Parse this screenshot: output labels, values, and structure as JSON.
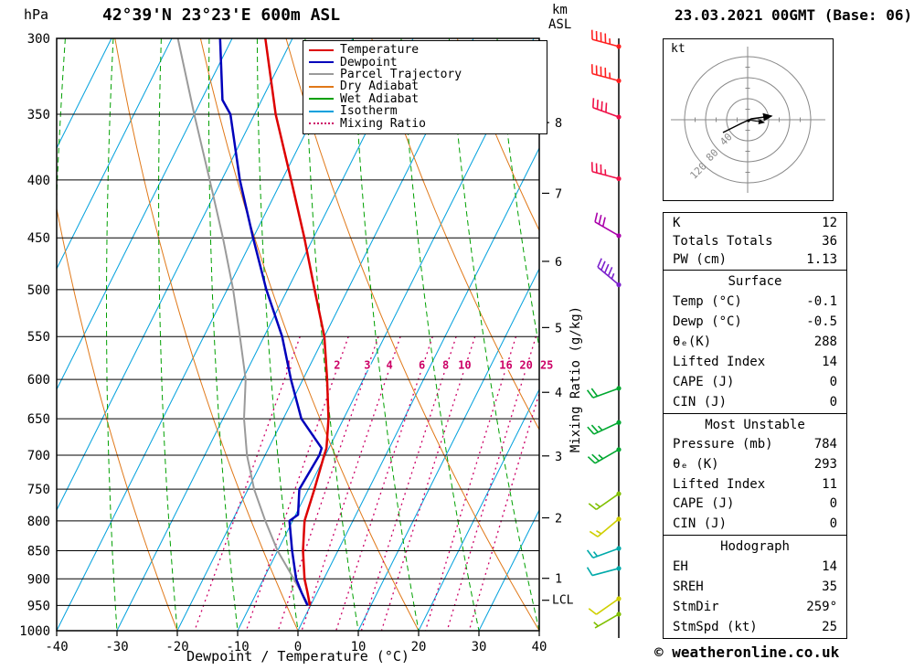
{
  "header": {
    "pressure_unit": "hPa",
    "title": "42°39'N 23°23'E 600m ASL",
    "km_label": "km",
    "asl_label": "ASL",
    "datetime": "23.03.2021 00GMT (Base: 06)"
  },
  "axes": {
    "x_label": "Dewpoint / Temperature (°C)",
    "mixing_axis_label": "Mixing Ratio (g/kg)",
    "pressure_ticks": [
      300,
      350,
      400,
      450,
      500,
      550,
      600,
      650,
      700,
      750,
      800,
      850,
      900,
      950,
      1000
    ],
    "temp_ticks": [
      -40,
      -30,
      -20,
      -10,
      0,
      10,
      20,
      30,
      40
    ],
    "km_ticks": [
      {
        "label": "8",
        "pressure": 356
      },
      {
        "label": "7",
        "pressure": 411
      },
      {
        "label": "6",
        "pressure": 472
      },
      {
        "label": "5",
        "pressure": 540
      },
      {
        "label": "4",
        "pressure": 616
      },
      {
        "label": "3",
        "pressure": 701
      },
      {
        "label": "2",
        "pressure": 795
      },
      {
        "label": "1",
        "pressure": 899
      }
    ],
    "lcl": {
      "label": "LCL",
      "pressure": 940
    }
  },
  "legend": {
    "items": [
      {
        "label": "Temperature",
        "color": "#dd0000",
        "style": "solid"
      },
      {
        "label": "Dewpoint",
        "color": "#0000bb",
        "style": "solid"
      },
      {
        "label": "Parcel Trajectory",
        "color": "#9a9a9a",
        "style": "solid"
      },
      {
        "label": "Dry Adiabat",
        "color": "#e07818",
        "style": "solid"
      },
      {
        "label": "Wet Adiabat",
        "color": "#00a000",
        "style": "solid"
      },
      {
        "label": "Isotherm",
        "color": "#00a0dd",
        "style": "solid"
      },
      {
        "label": "Mixing Ratio",
        "color": "#cc0066",
        "style": "dotted"
      }
    ]
  },
  "chart_data": {
    "type": "skewt-logp",
    "title": "42°39'N 23°23'E 600m ASL",
    "xlabel": "Dewpoint / Temperature (°C)",
    "pressure_range": [
      300,
      1000
    ],
    "temp_range": [
      -40,
      40
    ],
    "skew": 0.5,
    "isotherm_step": 10,
    "mixing_ratio_lines": [
      1,
      2,
      3,
      4,
      6,
      8,
      10,
      16,
      20,
      25
    ],
    "sounding": {
      "pressure": [
        950,
        925,
        900,
        850,
        800,
        790,
        750,
        700,
        690,
        650,
        600,
        550,
        500,
        450,
        400,
        350,
        340,
        300
      ],
      "temperature": [
        -0.1,
        -1.6,
        -3.2,
        -5.8,
        -8.0,
        -8.2,
        -9.0,
        -10.2,
        -10.4,
        -12.5,
        -16.0,
        -20.0,
        -25.5,
        -31.5,
        -38.5,
        -46.5,
        -48.0,
        -54.5
      ],
      "dewpoint": [
        -0.5,
        -2.6,
        -4.6,
        -7.6,
        -10.5,
        -9.6,
        -11.5,
        -11.0,
        -11.2,
        -17.0,
        -22.0,
        -27.0,
        -33.5,
        -40.0,
        -47.0,
        -54.0,
        -56.5,
        -62.0
      ]
    },
    "parcel": {
      "pressure": [
        950,
        900,
        850,
        800,
        750,
        700,
        650,
        600,
        550,
        500,
        450,
        400,
        350,
        300
      ],
      "temperature": [
        -0.3,
        -5.0,
        -10.0,
        -14.5,
        -19.0,
        -23.0,
        -26.5,
        -29.5,
        -34.0,
        -39.0,
        -45.0,
        -52.0,
        -60.0,
        -69.0
      ]
    },
    "wind_barbs": [
      {
        "pressure": 305,
        "speed_kt": 45,
        "direction_deg": 285,
        "color": "#ff2020"
      },
      {
        "pressure": 327,
        "speed_kt": 45,
        "direction_deg": 285,
        "color": "#ff2020"
      },
      {
        "pressure": 352,
        "speed_kt": 40,
        "direction_deg": 290,
        "color": "#f01048"
      },
      {
        "pressure": 399,
        "speed_kt": 35,
        "direction_deg": 285,
        "color": "#f01048"
      },
      {
        "pressure": 448,
        "speed_kt": 30,
        "direction_deg": 300,
        "color": "#aa00aa"
      },
      {
        "pressure": 495,
        "speed_kt": 45,
        "direction_deg": 310,
        "color": "#7b20cc"
      },
      {
        "pressure": 611,
        "speed_kt": 20,
        "direction_deg": 250,
        "color": "#00a830"
      },
      {
        "pressure": 655,
        "speed_kt": 25,
        "direction_deg": 245,
        "color": "#00a830"
      },
      {
        "pressure": 692,
        "speed_kt": 25,
        "direction_deg": 240,
        "color": "#00a830"
      },
      {
        "pressure": 757,
        "speed_kt": 15,
        "direction_deg": 235,
        "color": "#7fbf00"
      },
      {
        "pressure": 797,
        "speed_kt": 15,
        "direction_deg": 230,
        "color": "#cfcf00"
      },
      {
        "pressure": 846,
        "speed_kt": 15,
        "direction_deg": 250,
        "color": "#00aaaa"
      },
      {
        "pressure": 881,
        "speed_kt": 10,
        "direction_deg": 255,
        "color": "#00aaaa"
      },
      {
        "pressure": 937,
        "speed_kt": 10,
        "direction_deg": 235,
        "color": "#cfcf00"
      },
      {
        "pressure": 967,
        "speed_kt": 5,
        "direction_deg": 240,
        "color": "#7fbf00"
      }
    ],
    "colors": {
      "temperature": "#dd0000",
      "dewpoint": "#0000bb",
      "parcel": "#9a9a9a",
      "dry_adiabat": "#e07818",
      "wet_adiabat": "#00a000",
      "isotherm": "#00a0dd",
      "mixing_ratio": "#cc0066",
      "grid": "#000000"
    }
  },
  "hodograph": {
    "unit_label": "kt",
    "rings": [
      40,
      80,
      120
    ]
  },
  "panels": {
    "indices": {
      "rows": [
        {
          "label": "K",
          "value": "12"
        },
        {
          "label": "Totals Totals",
          "value": "36"
        },
        {
          "label": "PW (cm)",
          "value": "1.13"
        }
      ]
    },
    "surface": {
      "title": "Surface",
      "rows": [
        {
          "label": "Temp (°C)",
          "value": "-0.1"
        },
        {
          "label": "Dewp (°C)",
          "value": "-0.5"
        },
        {
          "label": "θₑ(K)",
          "value": "288"
        },
        {
          "label": "Lifted Index",
          "value": "14"
        },
        {
          "label": "CAPE (J)",
          "value": "0"
        },
        {
          "label": "CIN (J)",
          "value": "0"
        }
      ]
    },
    "most_unstable": {
      "title": "Most Unstable",
      "rows": [
        {
          "label": "Pressure (mb)",
          "value": "784"
        },
        {
          "label": "θₑ (K)",
          "value": "293"
        },
        {
          "label": "Lifted Index",
          "value": "11"
        },
        {
          "label": "CAPE (J)",
          "value": "0"
        },
        {
          "label": "CIN (J)",
          "value": "0"
        }
      ]
    },
    "hodograph_stats": {
      "title": "Hodograph",
      "rows": [
        {
          "label": "EH",
          "value": "14"
        },
        {
          "label": "SREH",
          "value": "35"
        },
        {
          "label": "StmDir",
          "value": "259°"
        },
        {
          "label": "StmSpd (kt)",
          "value": "25"
        }
      ]
    }
  },
  "footer": {
    "copyright": "© weatheronline.co.uk"
  }
}
